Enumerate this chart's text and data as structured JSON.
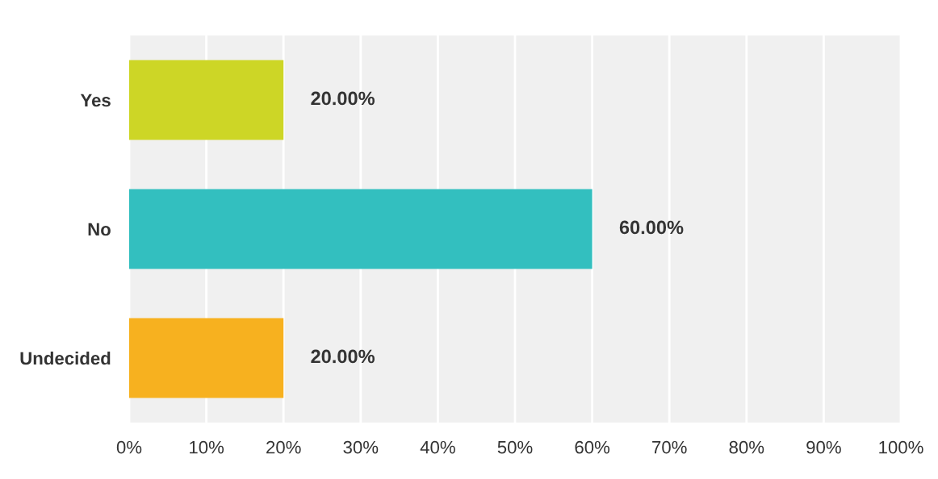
{
  "chart_data": {
    "type": "bar",
    "orientation": "horizontal",
    "categories": [
      "Yes",
      "No",
      "Undecided"
    ],
    "values": [
      20,
      60,
      20
    ],
    "colors": [
      "#cdd626",
      "#33bfbf",
      "#f7b11f"
    ],
    "value_labels": [
      "20.00%",
      "60.00%",
      "20.00%"
    ],
    "xlim": [
      0,
      100
    ],
    "xticks": [
      {
        "value": 0,
        "label": "0%"
      },
      {
        "value": 10,
        "label": "10%"
      },
      {
        "value": 20,
        "label": "20%"
      },
      {
        "value": 30,
        "label": "30%"
      },
      {
        "value": 40,
        "label": "40%"
      },
      {
        "value": 50,
        "label": "50%"
      },
      {
        "value": 60,
        "label": "60%"
      },
      {
        "value": 70,
        "label": "70%"
      },
      {
        "value": 80,
        "label": "80%"
      },
      {
        "value": 90,
        "label": "90%"
      },
      {
        "value": 100,
        "label": "100%"
      }
    ],
    "grid": "x"
  }
}
